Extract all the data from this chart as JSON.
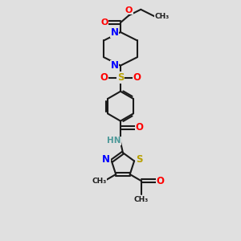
{
  "bg_color": "#e0e0e0",
  "bond_color": "#1a1a1a",
  "N_color": "#0000ff",
  "O_color": "#ff0000",
  "S_color": "#b8a000",
  "H_color": "#4d9999",
  "lw": 1.5,
  "figsize": [
    3.0,
    3.0
  ],
  "dpi": 100,
  "xlim": [
    2.0,
    8.0
  ],
  "ylim": [
    0.3,
    10.3
  ]
}
